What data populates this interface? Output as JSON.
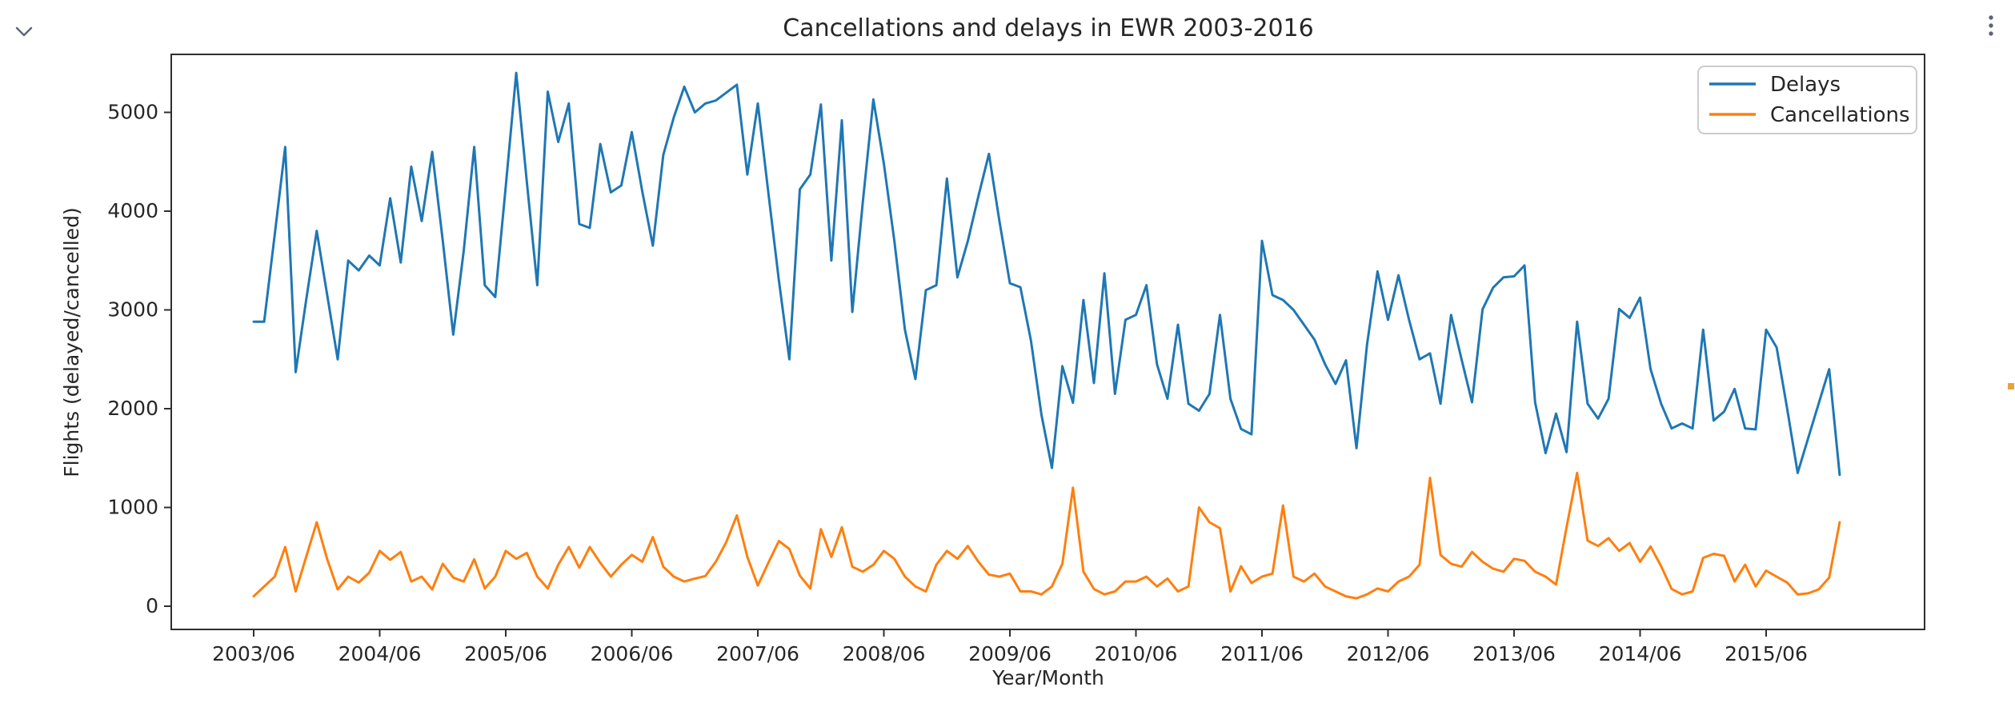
{
  "page": {
    "background": "#ffffff"
  },
  "controls": {
    "collapse_icon": "chevron-down",
    "menu_icon": "vertical-ellipsis",
    "scroll_marker_color": "#e9a23b",
    "icon_color": "#5f6575"
  },
  "chart_data": {
    "type": "line",
    "title": "Cancellations and delays in EWR 2003-2016",
    "xlabel": "Year/Month",
    "ylabel": "Flights (delayed/cancelled)",
    "x_start": "2003/06",
    "x_end": "2016/01",
    "points_per_series": 152,
    "xtick_labels": [
      "2003/06",
      "2004/06",
      "2005/06",
      "2006/06",
      "2007/06",
      "2008/06",
      "2009/06",
      "2010/06",
      "2011/06",
      "2012/06",
      "2013/06",
      "2014/06",
      "2015/06"
    ],
    "ytick_values": [
      0,
      1000,
      2000,
      3000,
      4000,
      5000
    ],
    "ylim": [
      -240,
      5650
    ],
    "grid": false,
    "legend": {
      "position": "upper-right",
      "entries": [
        "Delays",
        "Cancellations"
      ]
    },
    "colors": {
      "delays": "#1f77b4",
      "cancellations": "#ff7f0e",
      "spine": "#2e2e2e",
      "text": "#262626"
    },
    "series": [
      {
        "name": "Delays",
        "color": "#1f77b4",
        "values": [
          2880,
          2880,
          3760,
          4650,
          2370,
          3100,
          3800,
          3150,
          2500,
          3500,
          3400,
          3550,
          3450,
          4130,
          3480,
          4450,
          3900,
          4600,
          3700,
          2750,
          3600,
          4650,
          3250,
          3130,
          4250,
          5400,
          4300,
          3250,
          5210,
          4700,
          5090,
          3870,
          3830,
          4680,
          4190,
          4260,
          4800,
          4200,
          3650,
          4570,
          4950,
          5260,
          5000,
          5090,
          5120,
          5200,
          5280,
          4370,
          5090,
          4190,
          3300,
          2500,
          4220,
          4370,
          5080,
          3500,
          4920,
          2980,
          4100,
          5130,
          4480,
          3700,
          2800,
          2300,
          3200,
          3250,
          4330,
          3330,
          3700,
          4150,
          4580,
          3900,
          3270,
          3230,
          2690,
          1940,
          1400,
          2430,
          2060,
          3100,
          2260,
          3370,
          2150,
          2900,
          2950,
          3250,
          2450,
          2100,
          2850,
          2050,
          1980,
          2150,
          2950,
          2100,
          1795,
          1740,
          3700,
          3150,
          3100,
          3000,
          2850,
          2700,
          2450,
          2250,
          2490,
          1600,
          2650,
          3390,
          2900,
          3350,
          2900,
          2500,
          2560,
          2050,
          2950,
          2500,
          2065,
          3005,
          3225,
          3330,
          3340,
          3450,
          2065,
          1550,
          1950,
          1560,
          2880,
          2050,
          1900,
          2100,
          3010,
          2920,
          3125,
          2400,
          2050,
          1800,
          1850,
          1800,
          2800,
          1880,
          1970,
          2200,
          1800,
          1790,
          2800,
          2620,
          2000,
          1350,
          1700,
          2050,
          2400,
          1330
        ]
      },
      {
        "name": "Cancellations",
        "color": "#ff7f0e",
        "values": [
          100,
          200,
          300,
          600,
          150,
          500,
          850,
          475,
          170,
          300,
          240,
          340,
          560,
          470,
          550,
          250,
          300,
          170,
          430,
          290,
          250,
          475,
          180,
          300,
          560,
          480,
          540,
          300,
          180,
          420,
          600,
          390,
          600,
          440,
          300,
          420,
          520,
          450,
          700,
          400,
          300,
          250,
          280,
          305,
          450,
          650,
          920,
          500,
          210,
          440,
          660,
          580,
          310,
          180,
          780,
          500,
          800,
          400,
          350,
          420,
          560,
          480,
          300,
          200,
          150,
          420,
          560,
          480,
          610,
          450,
          320,
          300,
          330,
          150,
          150,
          120,
          200,
          430,
          1200,
          350,
          175,
          120,
          150,
          250,
          250,
          300,
          200,
          280,
          150,
          200,
          1000,
          850,
          790,
          150,
          405,
          235,
          300,
          330,
          1020,
          300,
          250,
          330,
          200,
          150,
          100,
          80,
          120,
          180,
          150,
          250,
          300,
          420,
          1300,
          520,
          430,
          400,
          550,
          450,
          380,
          350,
          480,
          460,
          350,
          300,
          220,
          800,
          1350,
          665,
          610,
          690,
          560,
          640,
          450,
          605,
          405,
          175,
          120,
          150,
          490,
          530,
          510,
          250,
          420,
          200,
          360,
          300,
          240,
          120,
          130,
          170,
          290,
          850
        ]
      }
    ]
  }
}
